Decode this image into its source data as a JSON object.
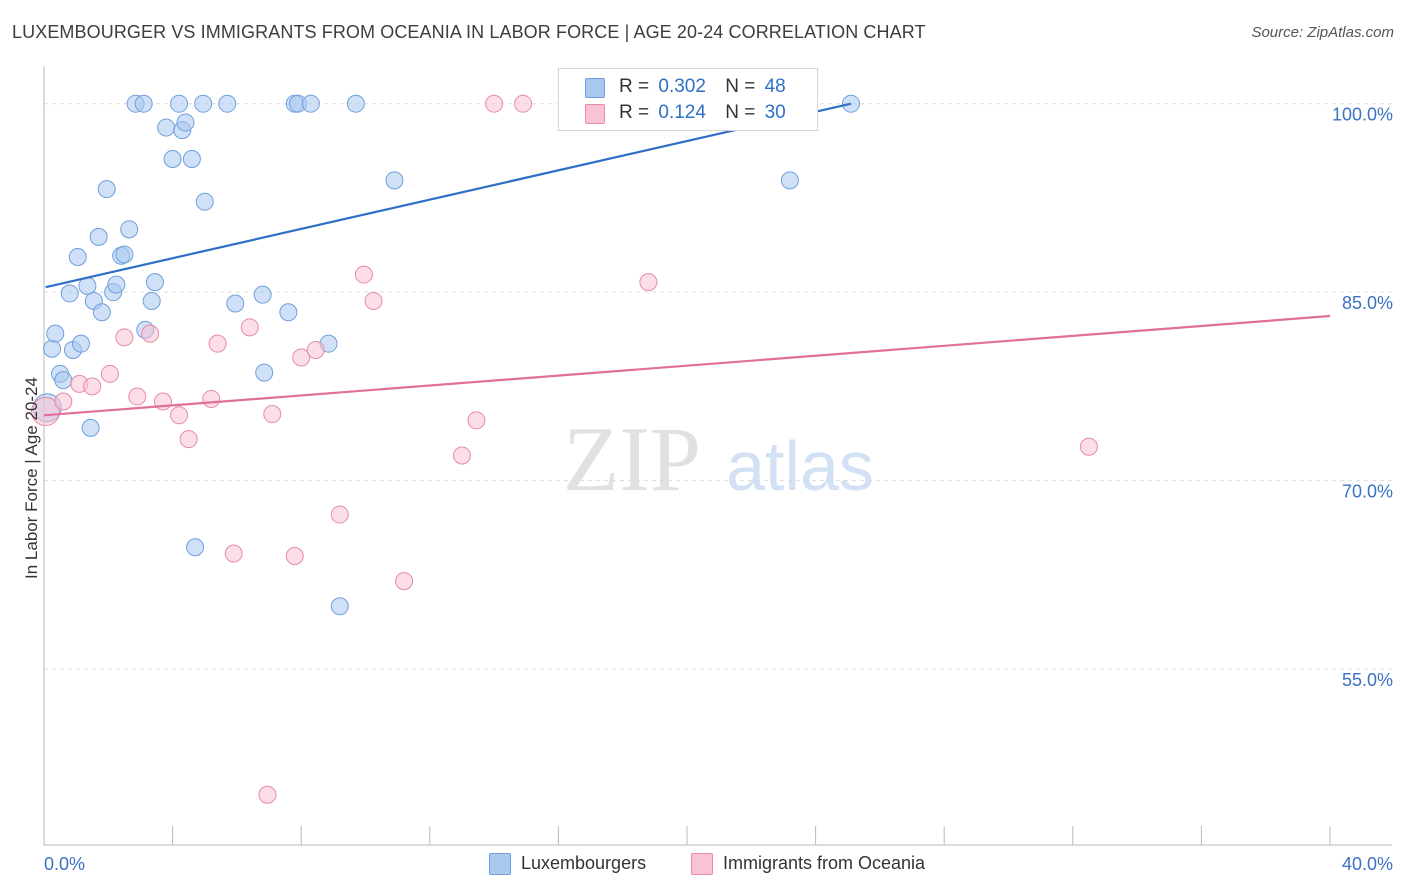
{
  "title": "LUXEMBOURGER VS IMMIGRANTS FROM OCEANIA IN LABOR FORCE | AGE 20-24 CORRELATION CHART",
  "source": "Source: ZipAtlas.com",
  "watermark": {
    "zip": "ZIP",
    "atlas": "atlas"
  },
  "legend": {
    "rows": [
      {
        "r_label": "R =",
        "r_value": "0.302",
        "n_label": "N =",
        "n_value": "48",
        "color": "#a9c8f0",
        "border": "#6f9fdc"
      },
      {
        "r_label": "R =",
        "r_value": "0.124",
        "n_label": "N =",
        "n_value": "30",
        "color": "#f9c3d3",
        "border": "#e88aa8"
      }
    ]
  },
  "chart_data": {
    "type": "scatter",
    "title": "LUXEMBOURGER VS IMMIGRANTS FROM OCEANIA IN LABOR FORCE | AGE 20-24 CORRELATION CHART",
    "xlabel": "",
    "ylabel": "In Labor Force | Age 20-24",
    "xlim": [
      0,
      40
    ],
    "ylim": [
      41,
      103
    ],
    "x_tick_labels": [
      "0.0%",
      "40.0%"
    ],
    "x_tick_values": [
      0,
      40
    ],
    "y_ticks": [
      {
        "value": 100,
        "label": "100.0%"
      },
      {
        "value": 85,
        "label": "85.0%"
      },
      {
        "value": 70,
        "label": "70.0%"
      },
      {
        "value": 55,
        "label": "55.0%"
      }
    ],
    "grid": "horizontal dashed",
    "legend_position": "top-center",
    "series": [
      {
        "name": "Luxemburgers",
        "legend_label": "Luxembourgers",
        "color": "#a9c8f0",
        "stroke": "#6f9fdc",
        "trend_color": "#2f6fc8",
        "trend": [
          [
            0.05,
            85.4
          ],
          [
            25.1,
            100.0
          ]
        ],
        "points": [
          [
            0.1,
            75.8
          ],
          [
            0.25,
            80.5
          ],
          [
            0.35,
            81.7
          ],
          [
            0.5,
            78.5
          ],
          [
            0.6,
            78.0
          ],
          [
            0.8,
            84.9
          ],
          [
            0.9,
            80.4
          ],
          [
            1.05,
            87.8
          ],
          [
            1.15,
            80.9
          ],
          [
            1.35,
            85.5
          ],
          [
            1.45,
            74.2
          ],
          [
            1.55,
            84.3
          ],
          [
            1.7,
            89.4
          ],
          [
            1.8,
            83.4
          ],
          [
            1.95,
            93.2
          ],
          [
            2.15,
            85.0
          ],
          [
            2.25,
            85.6
          ],
          [
            2.4,
            87.9
          ],
          [
            2.5,
            88.0
          ],
          [
            2.65,
            90.0
          ],
          [
            2.85,
            100.0
          ],
          [
            3.1,
            100.0
          ],
          [
            3.15,
            82.0
          ],
          [
            3.35,
            84.3
          ],
          [
            3.45,
            85.8
          ],
          [
            3.8,
            98.1
          ],
          [
            4.0,
            95.6
          ],
          [
            4.2,
            100.0
          ],
          [
            4.3,
            97.9
          ],
          [
            4.4,
            98.5
          ],
          [
            4.6,
            95.6
          ],
          [
            4.7,
            64.7
          ],
          [
            4.95,
            100.0
          ],
          [
            5.0,
            92.2
          ],
          [
            5.7,
            100.0
          ],
          [
            5.95,
            84.1
          ],
          [
            6.8,
            84.8
          ],
          [
            6.85,
            78.6
          ],
          [
            7.6,
            83.4
          ],
          [
            7.8,
            100.0
          ],
          [
            7.9,
            100.0
          ],
          [
            8.3,
            100.0
          ],
          [
            8.85,
            80.9
          ],
          [
            9.2,
            60.0
          ],
          [
            9.7,
            100.0
          ],
          [
            10.9,
            93.9
          ],
          [
            23.2,
            93.9
          ],
          [
            25.1,
            100.0
          ]
        ]
      },
      {
        "name": "Immigrants from Oceania",
        "legend_label": "Immigrants from Oceania",
        "color": "#f9c3d3",
        "stroke": "#e88aa8",
        "trend_color": "#e07099",
        "trend": [
          [
            0.0,
            75.2
          ],
          [
            40.0,
            83.1
          ]
        ],
        "points": [
          [
            0.05,
            75.5
          ],
          [
            0.6,
            76.3
          ],
          [
            1.1,
            77.7
          ],
          [
            1.5,
            77.5
          ],
          [
            2.05,
            78.5
          ],
          [
            2.5,
            81.4
          ],
          [
            2.9,
            76.7
          ],
          [
            3.3,
            81.7
          ],
          [
            3.7,
            76.3
          ],
          [
            4.2,
            75.2
          ],
          [
            4.5,
            73.3
          ],
          [
            5.2,
            76.5
          ],
          [
            5.4,
            80.9
          ],
          [
            5.9,
            64.2
          ],
          [
            6.4,
            82.2
          ],
          [
            7.1,
            75.3
          ],
          [
            7.8,
            64.0
          ],
          [
            8.0,
            79.8
          ],
          [
            8.45,
            80.4
          ],
          [
            9.2,
            67.3
          ],
          [
            9.95,
            86.4
          ],
          [
            10.25,
            84.3
          ],
          [
            11.2,
            62.0
          ],
          [
            13.0,
            72.0
          ],
          [
            13.45,
            74.8
          ],
          [
            14.0,
            100.0
          ],
          [
            14.9,
            100.0
          ],
          [
            18.8,
            85.8
          ],
          [
            32.5,
            72.7
          ],
          [
            6.95,
            45.0
          ]
        ]
      }
    ]
  }
}
